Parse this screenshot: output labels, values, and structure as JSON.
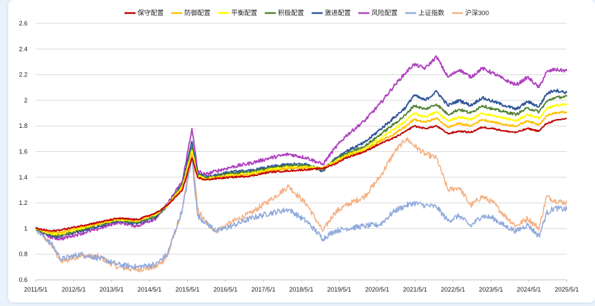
{
  "chart_data": {
    "type": "line",
    "title": "",
    "xlabel": "",
    "ylabel": "",
    "ylim": [
      0.6,
      2.6
    ],
    "yticks": [
      0.6,
      0.8,
      1,
      1.2,
      1.4,
      1.6,
      1.8,
      2,
      2.2,
      2.4,
      2.6
    ],
    "ytick_labels": [
      "0.6",
      "0.8",
      "1",
      "1.2",
      "1.4",
      "1.6",
      "1.8",
      "2",
      "2.2",
      "2.4",
      "2.6"
    ],
    "x_range": [
      2011.333,
      2025.333
    ],
    "xticks": [
      2011.333,
      2012.333,
      2013.333,
      2014.333,
      2015.333,
      2016.333,
      2017.333,
      2018.333,
      2019.333,
      2020.333,
      2021.333,
      2022.333,
      2023.333,
      2024.333,
      2025.333
    ],
    "xtick_labels": [
      "2011/5/1",
      "2012/5/1",
      "2013/5/1",
      "2014/5/1",
      "2015/5/1",
      "2016/5/1",
      "2017/5/1",
      "2018/5/1",
      "2019/5/1",
      "2020/5/1",
      "2021/5/1",
      "2022/5/1",
      "2023/5/1",
      "2024/5/1",
      "2025/5/1"
    ],
    "grid": "horizontal",
    "legend_position": "top-center",
    "x": [
      2011.333,
      2011.75,
      2012.0,
      2012.5,
      2013.0,
      2013.5,
      2014.0,
      2014.5,
      2014.8,
      2015.2,
      2015.45,
      2015.6,
      2015.8,
      2016.1,
      2016.5,
      2017.0,
      2017.5,
      2018.0,
      2018.5,
      2018.9,
      2019.2,
      2019.5,
      2020.0,
      2020.4,
      2020.8,
      2021.1,
      2021.3,
      2021.6,
      2021.9,
      2022.2,
      2022.5,
      2022.8,
      2023.1,
      2023.4,
      2023.7,
      2024.0,
      2024.3,
      2024.6,
      2024.8,
      2025.0,
      2025.333
    ],
    "series": [
      {
        "name": "保守配置",
        "color": "#c00000",
        "values": [
          1.0,
          0.98,
          0.99,
          1.02,
          1.05,
          1.08,
          1.07,
          1.12,
          1.18,
          1.3,
          1.55,
          1.4,
          1.38,
          1.39,
          1.4,
          1.41,
          1.44,
          1.45,
          1.46,
          1.47,
          1.5,
          1.55,
          1.6,
          1.66,
          1.71,
          1.76,
          1.8,
          1.78,
          1.8,
          1.74,
          1.76,
          1.75,
          1.79,
          1.78,
          1.76,
          1.75,
          1.78,
          1.76,
          1.82,
          1.84,
          1.86
        ]
      },
      {
        "name": "防御配置",
        "color": "#ffc000",
        "values": [
          1.0,
          0.97,
          0.97,
          1.01,
          1.04,
          1.08,
          1.06,
          1.12,
          1.18,
          1.32,
          1.58,
          1.4,
          1.38,
          1.4,
          1.41,
          1.42,
          1.45,
          1.47,
          1.47,
          1.47,
          1.51,
          1.56,
          1.61,
          1.68,
          1.74,
          1.8,
          1.85,
          1.83,
          1.86,
          1.79,
          1.82,
          1.8,
          1.85,
          1.83,
          1.81,
          1.8,
          1.84,
          1.81,
          1.88,
          1.9,
          1.91
        ]
      },
      {
        "name": "平衡配置",
        "color": "#ffff00",
        "values": [
          1.0,
          0.96,
          0.96,
          1.0,
          1.04,
          1.07,
          1.06,
          1.11,
          1.18,
          1.33,
          1.61,
          1.41,
          1.39,
          1.4,
          1.42,
          1.43,
          1.46,
          1.48,
          1.48,
          1.47,
          1.52,
          1.57,
          1.62,
          1.7,
          1.78,
          1.84,
          1.9,
          1.87,
          1.91,
          1.84,
          1.87,
          1.85,
          1.9,
          1.88,
          1.86,
          1.84,
          1.89,
          1.86,
          1.93,
          1.96,
          1.97
        ]
      },
      {
        "name": "积极配置",
        "color": "#548235",
        "values": [
          1.0,
          0.95,
          0.95,
          0.99,
          1.03,
          1.07,
          1.05,
          1.1,
          1.18,
          1.34,
          1.64,
          1.42,
          1.39,
          1.41,
          1.43,
          1.44,
          1.47,
          1.49,
          1.49,
          1.46,
          1.53,
          1.58,
          1.64,
          1.73,
          1.82,
          1.89,
          1.96,
          1.93,
          1.97,
          1.89,
          1.93,
          1.9,
          1.96,
          1.93,
          1.91,
          1.89,
          1.94,
          1.91,
          1.99,
          2.02,
          2.03
        ]
      },
      {
        "name": "激进配置",
        "color": "#2f5597",
        "values": [
          1.0,
          0.94,
          0.94,
          0.98,
          1.02,
          1.06,
          1.04,
          1.09,
          1.18,
          1.35,
          1.68,
          1.43,
          1.4,
          1.42,
          1.44,
          1.45,
          1.48,
          1.5,
          1.5,
          1.45,
          1.54,
          1.6,
          1.67,
          1.77,
          1.87,
          1.95,
          2.04,
          2.0,
          2.07,
          1.96,
          2.0,
          1.96,
          2.02,
          1.99,
          1.96,
          1.93,
          1.99,
          1.95,
          2.05,
          2.08,
          2.06
        ]
      },
      {
        "name": "风险配置",
        "color": "#b040c0",
        "values": [
          1.0,
          0.93,
          0.92,
          0.96,
          1.0,
          1.05,
          1.02,
          1.08,
          1.19,
          1.37,
          1.78,
          1.45,
          1.42,
          1.45,
          1.48,
          1.51,
          1.55,
          1.58,
          1.55,
          1.5,
          1.62,
          1.72,
          1.84,
          1.97,
          2.12,
          2.22,
          2.28,
          2.25,
          2.34,
          2.18,
          2.24,
          2.18,
          2.25,
          2.21,
          2.16,
          2.12,
          2.18,
          2.1,
          2.22,
          2.24,
          2.23
        ]
      },
      {
        "name": "上证指数",
        "color": "#8faadc",
        "values": [
          1.0,
          0.88,
          0.76,
          0.8,
          0.77,
          0.72,
          0.7,
          0.72,
          0.8,
          1.15,
          1.55,
          1.1,
          1.05,
          0.98,
          1.02,
          1.08,
          1.12,
          1.15,
          1.05,
          0.92,
          0.98,
          1.0,
          1.02,
          1.03,
          1.14,
          1.18,
          1.2,
          1.18,
          1.17,
          1.06,
          1.1,
          1.02,
          1.1,
          1.08,
          1.02,
          0.98,
          1.03,
          0.94,
          1.12,
          1.16,
          1.15
        ]
      },
      {
        "name": "沪深300",
        "color": "#f4b183",
        "values": [
          1.0,
          0.87,
          0.74,
          0.79,
          0.78,
          0.7,
          0.68,
          0.7,
          0.78,
          1.15,
          1.62,
          1.15,
          1.05,
          0.98,
          1.05,
          1.12,
          1.22,
          1.33,
          1.18,
          0.98,
          1.12,
          1.18,
          1.25,
          1.4,
          1.6,
          1.7,
          1.65,
          1.58,
          1.55,
          1.3,
          1.32,
          1.18,
          1.25,
          1.2,
          1.1,
          1.02,
          1.08,
          1.0,
          1.25,
          1.22,
          1.2
        ]
      }
    ]
  }
}
